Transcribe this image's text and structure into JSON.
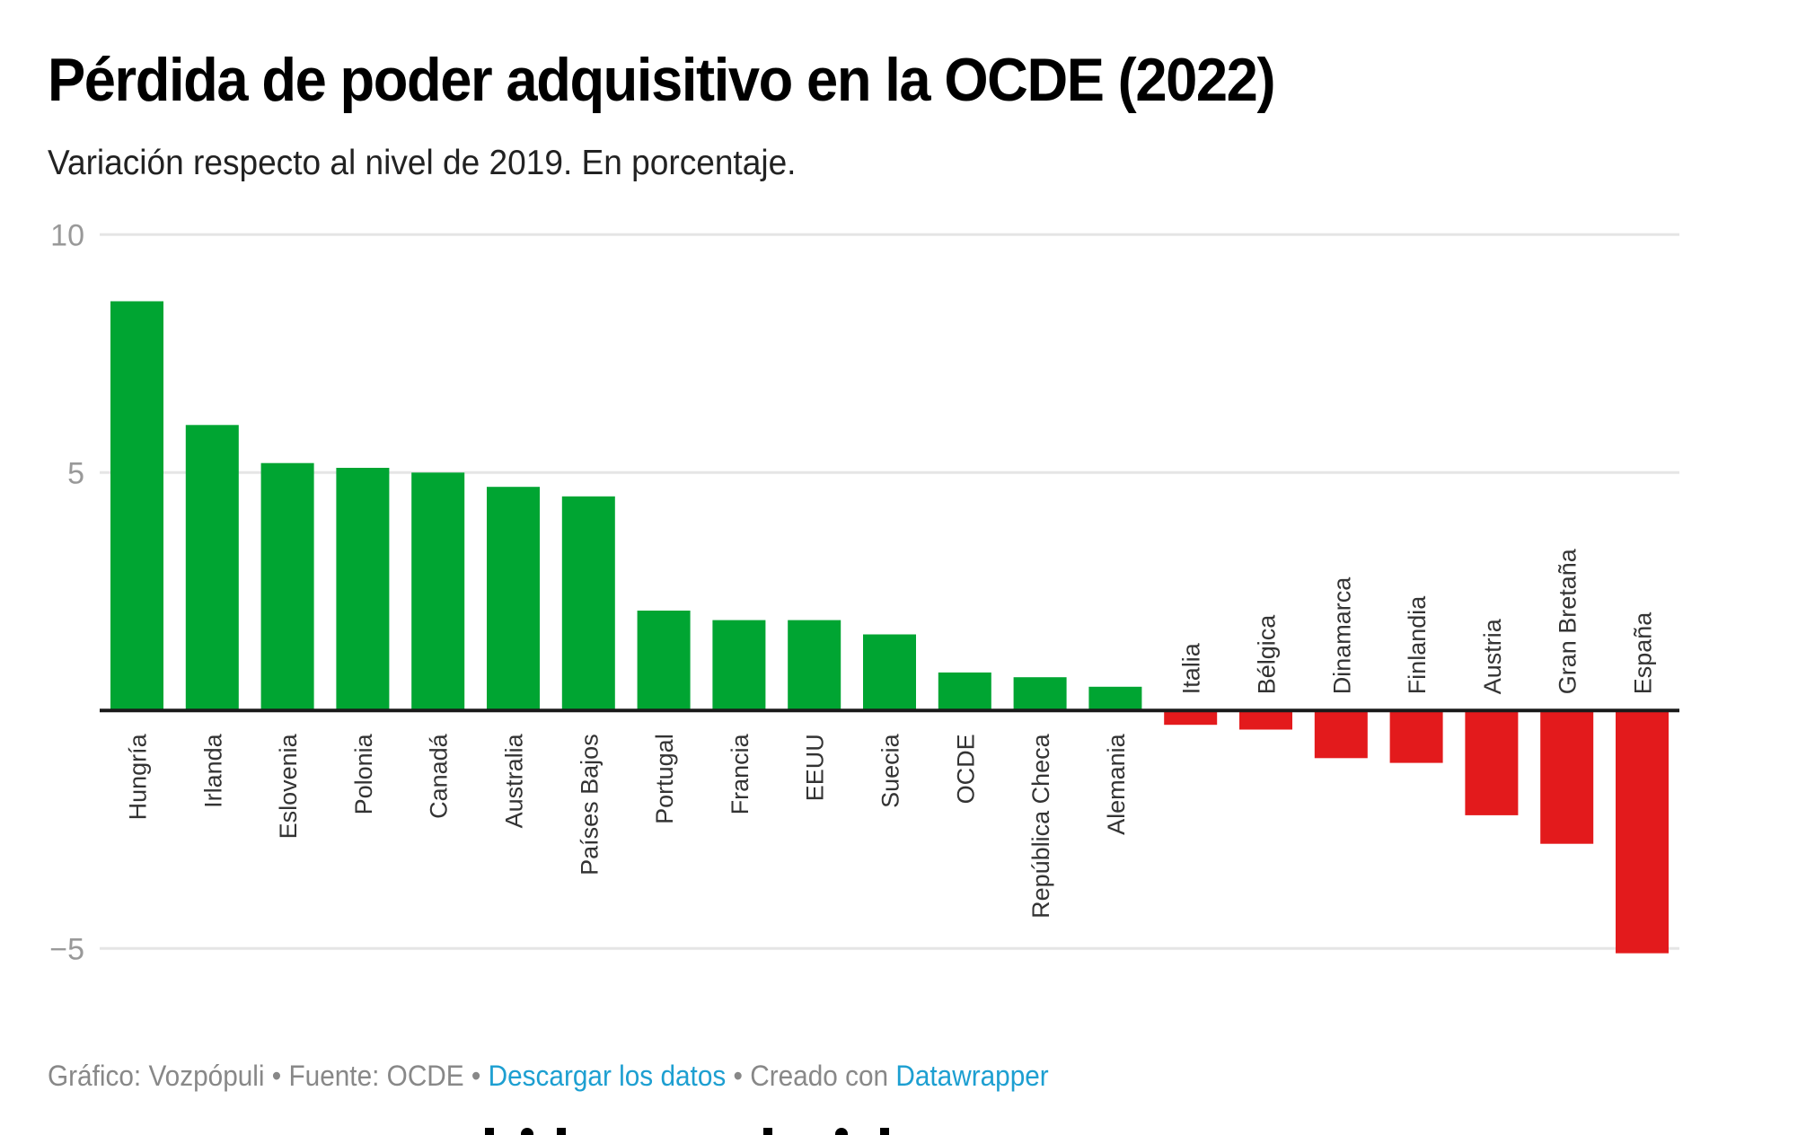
{
  "header": {
    "title": "Pérdida de poder adquisitivo en la OCDE (2022)",
    "subtitle": "Variación respecto al nivel de 2019. En porcentaje."
  },
  "footer": {
    "credit": "Gráfico: Vozpópuli",
    "separator": " • ",
    "source": "Fuente: OCDE",
    "download_link": "Descargar los datos",
    "created_with": "Creado con",
    "tool_link": "Datawrapper"
  },
  "colors": {
    "positive": "#00a532",
    "negative": "#e31a1c",
    "zero_line": "#1a1a1a",
    "grid": "#e5e5e5",
    "link": "#1d9fd1"
  },
  "chart_data": {
    "type": "bar",
    "title": "Pérdida de poder adquisitivo en la OCDE (2022)",
    "subtitle": "Variación respecto al nivel de 2019. En porcentaje.",
    "xlabel": "",
    "ylabel": "",
    "ylim": [
      -5,
      10
    ],
    "yticks": [
      10,
      5,
      -5
    ],
    "ytick_labels": [
      "10",
      "5",
      "−5"
    ],
    "grid": true,
    "legend": "none",
    "categories": [
      "Hungría",
      "Irlanda",
      "Eslovenia",
      "Polonia",
      "Canadá",
      "Australia",
      "Países Bajos",
      "Portugal",
      "Francia",
      "EEUU",
      "Suecia",
      "OCDE",
      "República Checa",
      "Alemania",
      "Italia",
      "Bélgica",
      "Dinamarca",
      "Finlandia",
      "Austria",
      "Gran Bretaña",
      "España"
    ],
    "values": [
      8.6,
      6.0,
      5.2,
      5.1,
      5.0,
      4.7,
      4.5,
      2.1,
      1.9,
      1.9,
      1.6,
      0.8,
      0.7,
      0.5,
      -0.3,
      -0.4,
      -1.0,
      -1.1,
      -2.2,
      -2.8,
      -5.1
    ]
  }
}
